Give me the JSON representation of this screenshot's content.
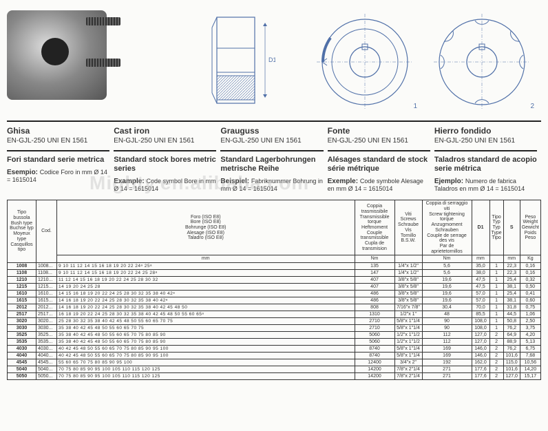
{
  "diagrams": {
    "d1_label": "D1",
    "label1": "1",
    "label2": "2"
  },
  "meta": {
    "cols": [
      {
        "title": "Ghisa",
        "sub": "EN-GJL-250 UNI EN 1561",
        "sec": "Fori standard serie metrica",
        "exLabel": "Esempio:",
        "exText": "Codice Foro in mm Ø 14 = 1615014"
      },
      {
        "title": "Cast iron",
        "sub": "EN-GJL-250 UNI EN 1561",
        "sec": "Standard stock bores metric series",
        "exLabel": "Example:",
        "exText": "Code symbol Bore in mm Ø 14 = 1615014"
      },
      {
        "title": "Grauguss",
        "sub": "EN-GJL-250 UNI EN 1561",
        "sec": "Standard Lagerbohrungen metrische Reihe",
        "exLabel": "Beispiel:",
        "exText": "Fabriknummer Bohrung in mm Ø 14 = 1615014"
      },
      {
        "title": "Fonte",
        "sub": "EN-GJL-250 UNI EN 1561",
        "sec": "Alésages standard de stock série métrique",
        "exLabel": "Exemple:",
        "exText": "Code symbole Alesage en mm Ø 14 = 1615014"
      },
      {
        "title": "Hierro fondido",
        "sub": "EN-GJL-250 UNI EN 1561",
        "sec": "Taladros standard de acopio serie métrica",
        "exLabel": "Ejemplo:",
        "exText": "Numero de fabrica Taladros en mm Ø 14 = 1615014"
      }
    ]
  },
  "watermark": "Mighty.en.alibaba.com",
  "tableHeaders": {
    "type": "Tipo bussola\nBush type\nBuchse typ\nMoyeux type\nCasquillos tipo",
    "cod": "Cod.",
    "bore": "Foro (ISO E8)\nBore (ISO E8)\nBohrunge (ISO E8)\nAlesage (ISO E8)\nTaladro (ISO E8)",
    "boreUnit": "mm",
    "torque": "Coppia trasmissibile\nTransmissible torque\nHeftmoment\nCouple transmissible\nCupla de transmision",
    "torqueUnit": "Nm",
    "screws": "Viti\nScrews\nSchraube\nVis\nTornillo\nB.S.W.",
    "tightening": "Coppia di serraggio viti\nScrew tightening torque\nAnzugmoment Schrauben\nCouple de serrage des vis\nPar de aprietetornillos",
    "tighteningUnit": "Nm",
    "d1": "D1",
    "d1Unit": "mm",
    "holesType": "Tipo\nTyp\nTyp\nType\nTipo",
    "s": "S",
    "sUnit": "mm",
    "weight": "Peso\nWeight\nGewicht\nPoids\nPeso",
    "weightUnit": "Kg"
  },
  "rows": [
    {
      "type": "1008",
      "cod": "1008...",
      "bore": "9 10 11 12 14 15 16 18 19 20 22 24ᵃ 25ᵃ",
      "torque": "135",
      "screws": "1/4\"x 1/2\"",
      "tight": "5,6",
      "d1": "35,0",
      "ht": "1",
      "s": "22,3",
      "w": "0,16"
    },
    {
      "type": "1108",
      "cod": "1108...",
      "bore": "9 10 11 12 14 15 16 18 19 20 22 24 25 28ᵃ",
      "torque": "147",
      "screws": "1/4\"x 1/2\"",
      "tight": "5,6",
      "d1": "38,0",
      "ht": "1",
      "s": "22,3",
      "w": "0,16"
    },
    {
      "type": "1210",
      "cod": "1210...",
      "bore": "11 12 14 15 16 18 19 20 22 24 25 28 30 32",
      "torque": "407",
      "screws": "3/8\"x 5/8\"",
      "tight": "19,6",
      "d1": "47,5",
      "ht": "1",
      "s": "25,4",
      "w": "0,32"
    },
    {
      "type": "1215",
      "cod": "1215...",
      "bore": "14 19 20 24 25 28",
      "torque": "407",
      "screws": "3/8\"x 5/8\"",
      "tight": "19,6",
      "d1": "47,5",
      "ht": "1",
      "s": "38,1",
      "w": "0,50"
    },
    {
      "type": "1610",
      "cod": "1610...",
      "bore": "14 15 16 18 19 20 22 24 25 28 30 32 35 38 40 42ᵃ",
      "torque": "486",
      "screws": "3/8\"x 5/8\"",
      "tight": "19,6",
      "d1": "57,0",
      "ht": "1",
      "s": "25,4",
      "w": "0,41"
    },
    {
      "type": "1615",
      "cod": "1615...",
      "bore": "14 16 18 19 20 22 24 25 28 30 32 35 38 40 42ᵃ",
      "torque": "486",
      "screws": "3/8\"x 5/8\"",
      "tight": "19,6",
      "d1": "57,0",
      "ht": "1",
      "s": "38,1",
      "w": "0,60"
    },
    {
      "type": "2012",
      "cod": "2012...",
      "bore": "14 16 18 19 20 22 24 25 28 30 32 35 38 40 42 45 48 50",
      "torque": "808",
      "screws": "7/16\"x 7/8\"",
      "tight": "30,4",
      "d1": "70,0",
      "ht": "1",
      "s": "31,8",
      "w": "0,75"
    },
    {
      "type": "2517",
      "cod": "2517...",
      "bore": "16 18 19 20 22 24 25 28 30 32 35 38 40 42 45 48 50 55 60 65ᵃ",
      "torque": "1310",
      "screws": "1/2\"x 1\"",
      "tight": "48",
      "d1": "85,5",
      "ht": "1",
      "s": "44,5",
      "w": "1,06"
    },
    {
      "type": "3020",
      "cod": "3020...",
      "bore": "25 28 30 32 35 38 40 42 45 48 50 55 60 65 70 75",
      "torque": "2710",
      "screws": "5/8\"x 1\"1/4",
      "tight": "90",
      "d1": "108,0",
      "ht": "1",
      "s": "50,8",
      "w": "2,50"
    },
    {
      "type": "3030",
      "cod": "3030...",
      "bore": "35 38 40 42 45 48 50 55 60 65 70 75",
      "torque": "2710",
      "screws": "5/8\"x 1\"1/4",
      "tight": "90",
      "d1": "108,0",
      "ht": "1",
      "s": "76,2",
      "w": "3,75"
    },
    {
      "type": "3525",
      "cod": "3525...",
      "bore": "35 38 40 42 45 48 50 55 60 65 70 75 80 85 90",
      "torque": "5060",
      "screws": "1/2\"x 1\"1/2",
      "tight": "112",
      "d1": "127,0",
      "ht": "2",
      "s": "64,9",
      "w": "4,20"
    },
    {
      "type": "3535",
      "cod": "3535...",
      "bore": "35 38 40 42 45 48 50 55 60 65 70 75 80 85 90",
      "torque": "5060",
      "screws": "1/2\"x 1\"1/2",
      "tight": "112",
      "d1": "127,0",
      "ht": "2",
      "s": "88,9",
      "w": "5,13"
    },
    {
      "type": "4030",
      "cod": "4030...",
      "bore": "40 42 45 48 50 55 60 65 70 75 80 85 90 95 100",
      "torque": "8740",
      "screws": "5/8\"x 1\"1/4",
      "tight": "169",
      "d1": "146,0",
      "ht": "2",
      "s": "76,2",
      "w": "6,75"
    },
    {
      "type": "4040",
      "cod": "4040...",
      "bore": "40 42 45 48 50 55 60 65 70 75 80 85 90 95 100",
      "torque": "8740",
      "screws": "5/8\"x 1\"1/4",
      "tight": "169",
      "d1": "146,0",
      "ht": "2",
      "s": "101,6",
      "w": "7,68"
    },
    {
      "type": "4545",
      "cod": "4545...",
      "bore": "55 60 65 70 75 80 85 90 95 100",
      "torque": "12400",
      "screws": "3/4\"x   2\"",
      "tight": "192",
      "d1": "162,0",
      "ht": "2",
      "s": "115,0",
      "w": "10,56"
    },
    {
      "type": "5040",
      "cod": "5040...",
      "bore": "70 75 80 85 90 95 100 105 110 115 120 125",
      "torque": "14200",
      "screws": "7/8\"x 2\"1/4",
      "tight": "271",
      "d1": "177,6",
      "ht": "2",
      "s": "101,6",
      "w": "14,20"
    },
    {
      "type": "5050",
      "cod": "5050...",
      "bore": "70 75 80 85 90 95 100 105 110 115 120 125",
      "torque": "14200",
      "screws": "7/8\"x 2\"1/4",
      "tight": "271",
      "d1": "177,6",
      "ht": "2",
      "s": "127,0",
      "w": "15,17"
    }
  ],
  "colors": {
    "line": "#5070a8",
    "border": "#333",
    "bg": "#fbfbf9"
  }
}
